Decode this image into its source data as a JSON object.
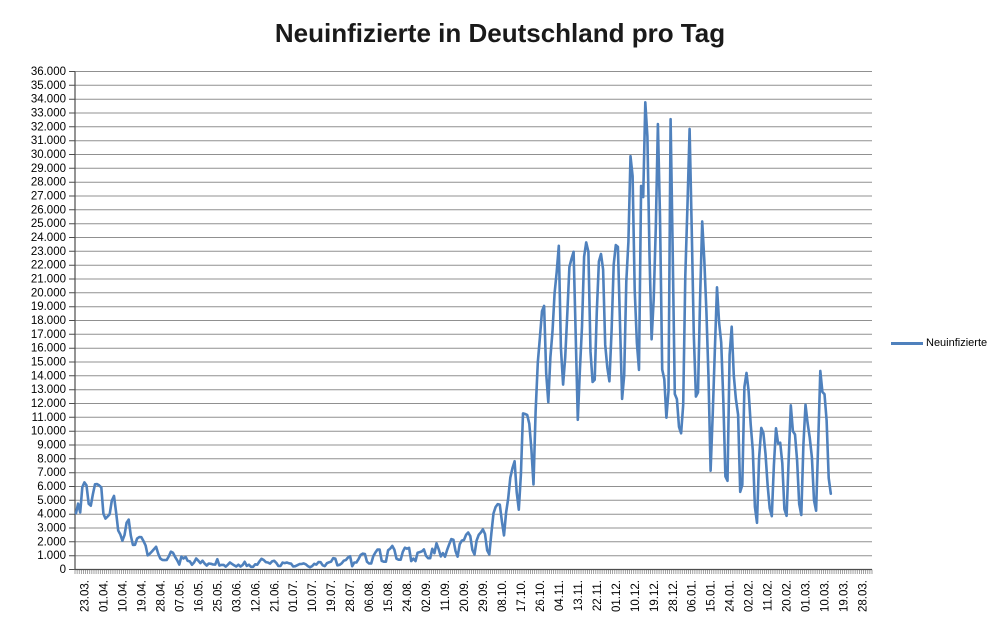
{
  "title": "Neuinfizierte in Deutschland pro Tag",
  "legend": {
    "label": "Neuinfizierte",
    "position": "right"
  },
  "chart_data": {
    "type": "line",
    "title": "Neuinfizierte in Deutschland pro Tag",
    "xlabel": "",
    "ylabel": "",
    "ylim": [
      0,
      36000
    ],
    "y_tick_step": 1000,
    "y_tick_format": "german-thousands-dot",
    "grid": "horizontal",
    "legend_position": "right",
    "x_tick_labels": [
      "23.03.",
      "01.04.",
      "10.04.",
      "19.04.",
      "28.04.",
      "07.05.",
      "16.05.",
      "25.05.",
      "03.06.",
      "12.06.",
      "21.06.",
      "01.07.",
      "10.07.",
      "19.07.",
      "28.07.",
      "06.08.",
      "15.08.",
      "24.08.",
      "02.09.",
      "11.09.",
      "20.09.",
      "29.09.",
      "08.10.",
      "17.10.",
      "26.10.",
      "04.11.",
      "13.11.",
      "22.11.",
      "01.12.",
      "10.12.",
      "19.12.",
      "28.12.",
      "06.01.",
      "15.01.",
      "24.01.",
      "02.02.",
      "11.02.",
      "20.02.",
      "01.03.",
      "10.03.",
      "19.03.",
      "28.03."
    ],
    "x_total_slots": 378,
    "series": [
      {
        "name": "Neuinfizierte",
        "color": "#4F81BD",
        "start_label": "23.03.",
        "values": [
          4062,
          4764,
          4118,
          5940,
          6294,
          6082,
          4751,
          4615,
          5453,
          6156,
          6174,
          6082,
          5936,
          4031,
          3677,
          3834,
          4003,
          4974,
          5323,
          4133,
          2821,
          2537,
          2082,
          2486,
          3380,
          3609,
          2458,
          1775,
          1785,
          2237,
          2352,
          2337,
          2055,
          1737,
          1018,
          1144,
          1304,
          1478,
          1639,
          1147,
          793,
          697,
          679,
          685,
          947,
          1284,
          1209,
          913,
          667,
          357,
          933,
          798,
          913,
          620,
          583,
          342,
          513,
          797,
          639,
          460,
          638,
          431,
          289,
          432,
          412,
          362,
          353,
          741,
          286,
          333,
          333,
          213,
          342,
          507,
          407,
          301,
          214,
          350,
          214,
          318,
          555,
          258,
          348,
          192,
          192,
          378,
          345,
          580,
          770,
          687,
          537,
          503,
          429,
          587,
          630,
          477,
          256,
          262,
          498,
          466,
          503,
          446,
          422,
          219,
          239,
          312,
          390,
          397,
          442,
          378,
          248,
          159,
          243,
          412,
          351,
          534,
          529,
          305,
          249,
          454,
          522,
          569,
          815,
          781,
          305,
          340,
          445,
          633,
          684,
          870,
          955,
          240,
          509,
          509,
          741,
          1045,
          1147,
          1122,
          555,
          436,
          436,
          966,
          1226,
          1445,
          1449,
          625,
          561,
          561,
          1390,
          1510,
          1707,
          1427,
          782,
          711,
          711,
          1278,
          1576,
          1507,
          1571,
          610,
          785,
          610,
          1218,
          1256,
          1311,
          1453,
          988,
          814,
          814,
          1499,
          1176,
          1892,
          1459,
          948,
          1184,
          927,
          1407,
          1822,
          2194,
          2153,
          1345,
          922,
          1821,
          2089,
          2143,
          2507,
          2673,
          2405,
          1411,
          1084,
          2089,
          2503,
          2673,
          2898,
          2563,
          1382,
          1091,
          2639,
          4058,
          4516,
          4721,
          4684,
          3483,
          2467,
          4122,
          5132,
          6638,
          7334,
          7830,
          5587,
          4325,
          6868,
          11287,
          11242,
          11176,
          10530,
          8685,
          6145,
          11409,
          14964,
          16774,
          18681,
          19059,
          14177,
          12097,
          15352,
          17214,
          19990,
          21506,
          23399,
          16017,
          13363,
          15332,
          18487,
          21866,
          22461,
          22964,
          16947,
          10824,
          14419,
          17561,
          22609,
          23648,
          22964,
          15741,
          13554,
          13721,
          18633,
          22268,
          22806,
          21695,
          16248,
          14611,
          13604,
          17270,
          22046,
          23449,
          23318,
          17767,
          12332,
          14054,
          20815,
          23679,
          29875,
          28438,
          20200,
          16362,
          14432,
          27728,
          26923,
          33777,
          31300,
          22771,
          16643,
          19528,
          24740,
          32195,
          25533,
          14455,
          13755,
          10976,
          12892,
          32552,
          22924,
          12690,
          12315,
          10315,
          9847,
          11897,
          21237,
          26391,
          31849,
          24694,
          16946,
          12497,
          12802,
          19600,
          25164,
          22368,
          18678,
          13882,
          7141,
          11369,
          15974,
          20398,
          17862,
          16417,
          12257,
          6729,
          6412,
          15513,
          17553,
          14022,
          12321,
          11192,
          5608,
          6114,
          13202,
          14211,
          12908,
          10485,
          8616,
          4535,
          3379,
          8072,
          10237,
          9860,
          8354,
          6114,
          4426,
          3856,
          7556,
          10207,
          9113,
          9164,
          7676,
          4369,
          3883,
          8007,
          11869,
          9997,
          9762,
          7890,
          4732,
          3943,
          9019,
          11912,
          10580,
          9557,
          8103,
          5011,
          4252,
          9146,
          14356,
          12834,
          12674,
          10790,
          6604,
          5480
        ]
      }
    ],
    "colors": {
      "line": "#4F81BD",
      "gridline": "#909090",
      "axis": "#4d4d4d",
      "text": "#000000",
      "background": "#FFFFFF"
    }
  }
}
